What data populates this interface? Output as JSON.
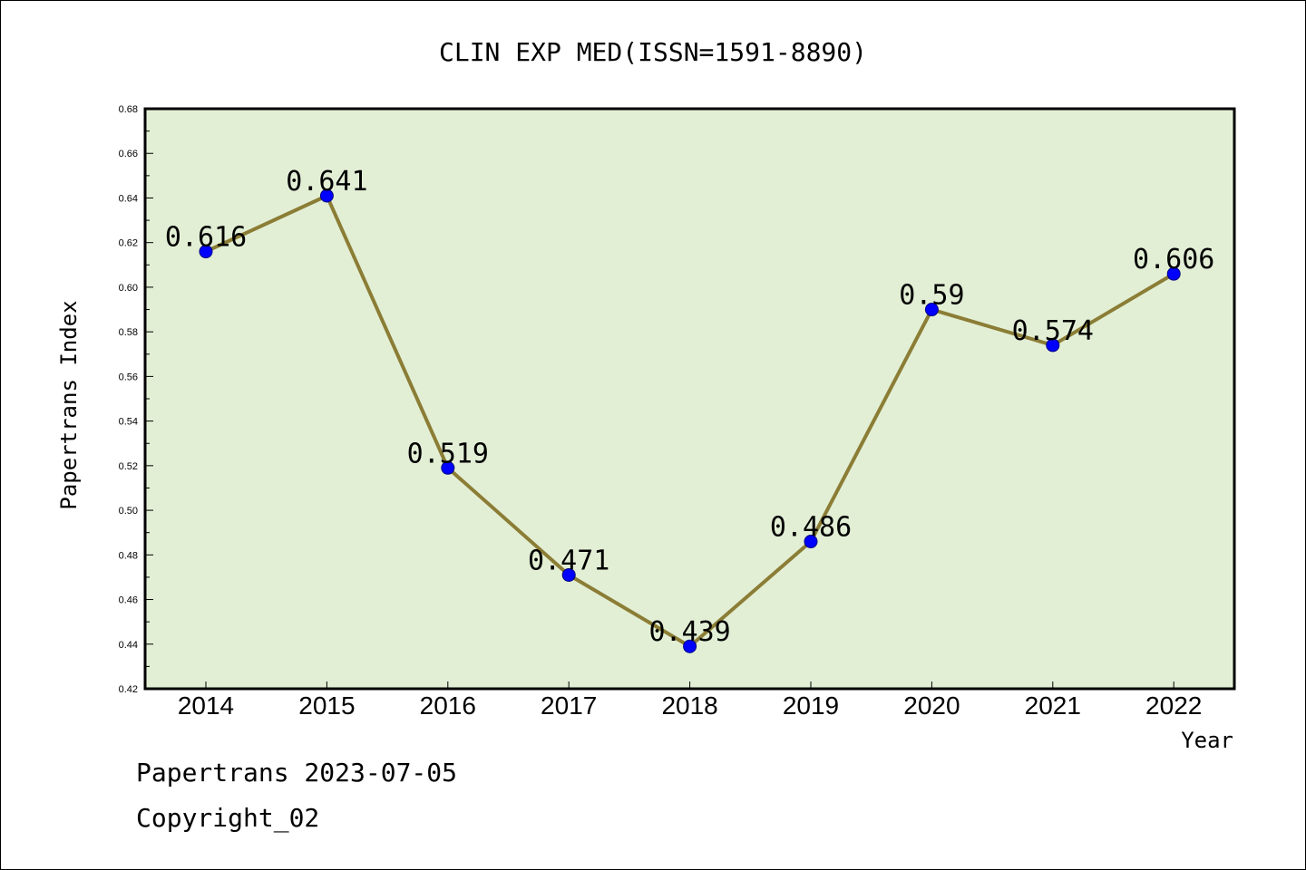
{
  "chart_data": {
    "type": "line",
    "title": "CLIN EXP MED(ISSN=1591-8890)",
    "xlabel": "Year",
    "ylabel": "Papertrans Index",
    "categories": [
      "2014",
      "2015",
      "2016",
      "2017",
      "2018",
      "2019",
      "2020",
      "2021",
      "2022"
    ],
    "series": [
      {
        "values": [
          0.616,
          0.641,
          0.519,
          0.471,
          0.439,
          0.486,
          0.59,
          0.574,
          0.606
        ],
        "labels": [
          "0.616",
          "0.641",
          "0.519",
          "0.471",
          "0.439",
          "0.486",
          "0.59",
          "0.574",
          "0.606"
        ]
      }
    ],
    "ylim": [
      0.42,
      0.68
    ],
    "yticks": [
      "0.42",
      "0.44",
      "0.46",
      "0.48",
      "0.50",
      "0.52",
      "0.54",
      "0.56",
      "0.58",
      "0.60",
      "0.62",
      "0.64",
      "0.66",
      "0.68"
    ],
    "grid": false,
    "colors": {
      "plot_background": "#e2efd5",
      "line": "#8b7d35",
      "marker": "#0000ff",
      "marker_edge": "#000080"
    }
  },
  "footer": {
    "line1": "Papertrans 2023-07-05",
    "line2": "Copyright_02"
  }
}
